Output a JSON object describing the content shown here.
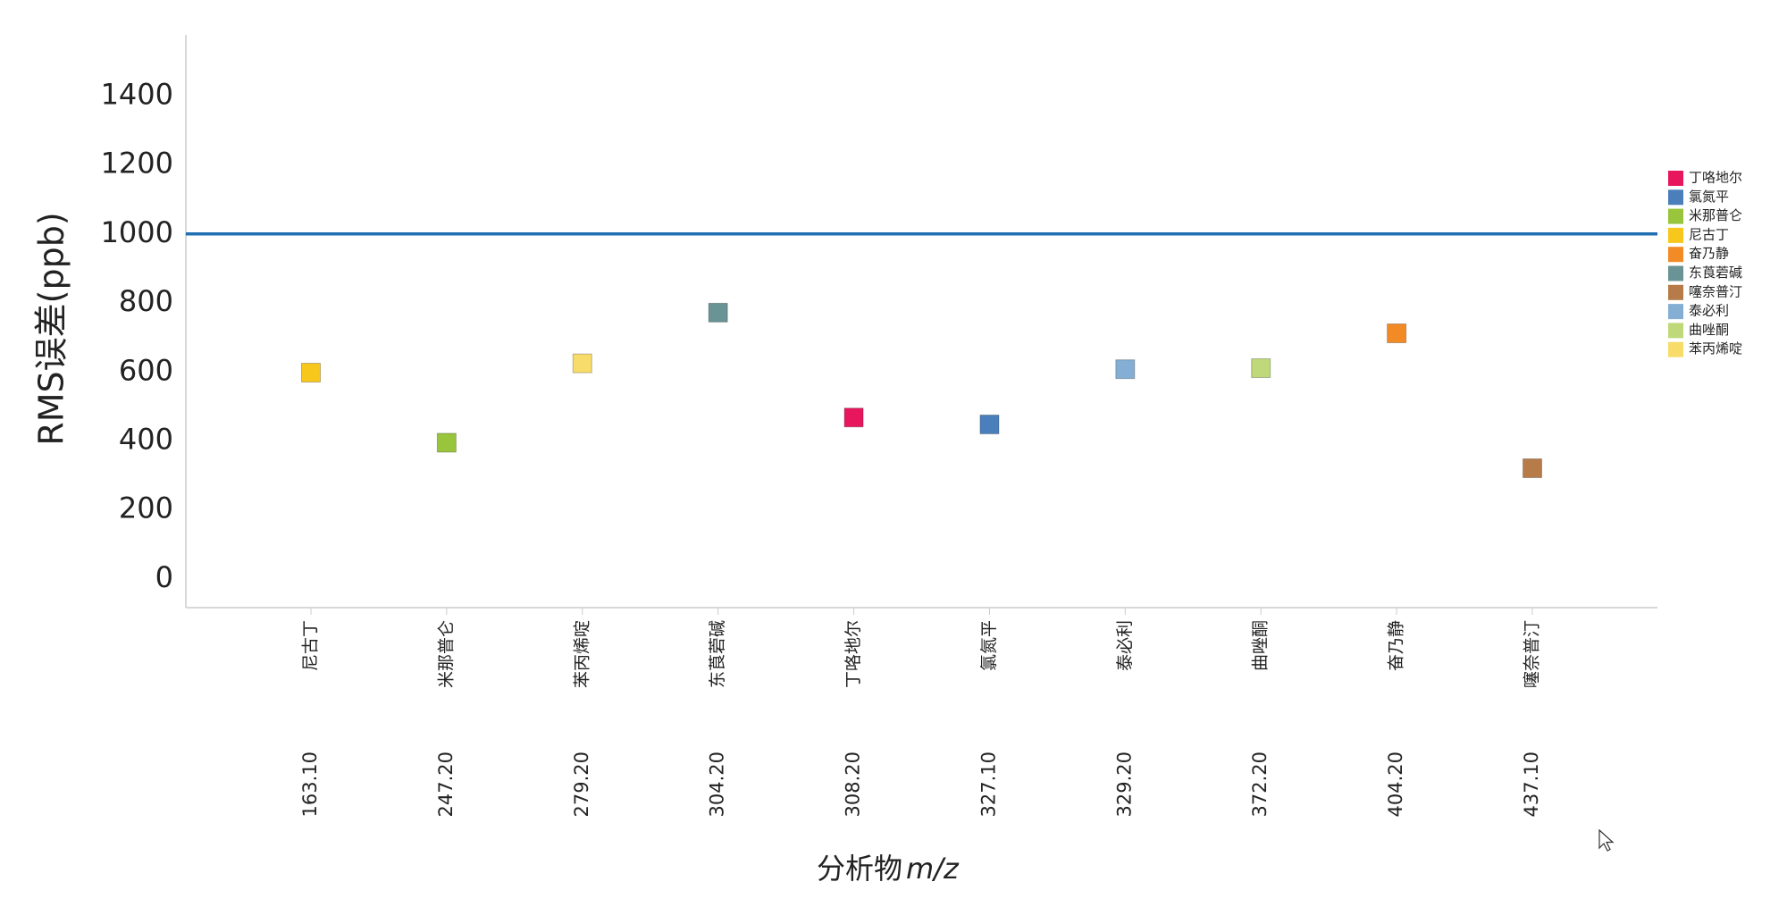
{
  "chart_data": {
    "type": "scatter",
    "y_label": "RMS误差(ppb)",
    "x_label": "分析物",
    "x_label_italic": "m/z",
    "categories": [
      "尼古丁",
      "米那普仑",
      "苯丙烯啶",
      "东莨菪碱",
      "丁咯地尔",
      "氯氮平",
      "泰必利",
      "曲唑酮",
      "奋乃静",
      "噻奈普汀"
    ],
    "mz_labels": [
      "163.10",
      "247.20",
      "279.20",
      "304.20",
      "308.20",
      "327.10",
      "329.20",
      "372.20",
      "404.20",
      "437.10"
    ],
    "series": [
      {
        "name": "丁咯地尔",
        "color": "#e8175d",
        "values": [
          null,
          null,
          null,
          null,
          468,
          null,
          null,
          null,
          null,
          null
        ]
      },
      {
        "name": "氯氮平",
        "color": "#4a7fbc",
        "values": [
          null,
          null,
          null,
          null,
          null,
          448,
          null,
          null,
          null,
          null
        ]
      },
      {
        "name": "米那普仑",
        "color": "#98c53b",
        "values": [
          null,
          395,
          null,
          null,
          null,
          null,
          null,
          null,
          null,
          null
        ]
      },
      {
        "name": "尼古丁",
        "color": "#f7c81b",
        "values": [
          598,
          null,
          null,
          null,
          null,
          null,
          null,
          null,
          null,
          null
        ]
      },
      {
        "name": "奋乃静",
        "color": "#f28a25",
        "values": [
          null,
          null,
          null,
          null,
          null,
          null,
          null,
          null,
          712,
          null
        ]
      },
      {
        "name": "东莨菪碱",
        "color": "#6a9395",
        "values": [
          null,
          null,
          null,
          772,
          null,
          null,
          null,
          null,
          null,
          null
        ]
      },
      {
        "name": "噻奈普汀",
        "color": "#b67b48",
        "values": [
          null,
          null,
          null,
          null,
          null,
          null,
          null,
          null,
          null,
          321
        ]
      },
      {
        "name": "泰必利",
        "color": "#84aed4",
        "values": [
          null,
          null,
          null,
          null,
          null,
          null,
          608,
          null,
          null,
          null
        ]
      },
      {
        "name": "曲唑酮",
        "color": "#bfd97a",
        "values": [
          null,
          null,
          null,
          null,
          null,
          null,
          null,
          611,
          null,
          null
        ]
      },
      {
        "name": "苯丙烯啶",
        "color": "#f7dc6a",
        "values": [
          null,
          null,
          625,
          null,
          null,
          null,
          null,
          null,
          null,
          null
        ]
      }
    ],
    "reference_line": {
      "value": 1000,
      "color": "#1f6fb2"
    },
    "ylim": [
      -83,
      1577
    ],
    "yticks": [
      0,
      200,
      400,
      600,
      800,
      1000,
      1200,
      1400
    ],
    "grid": false,
    "legend": "right"
  }
}
